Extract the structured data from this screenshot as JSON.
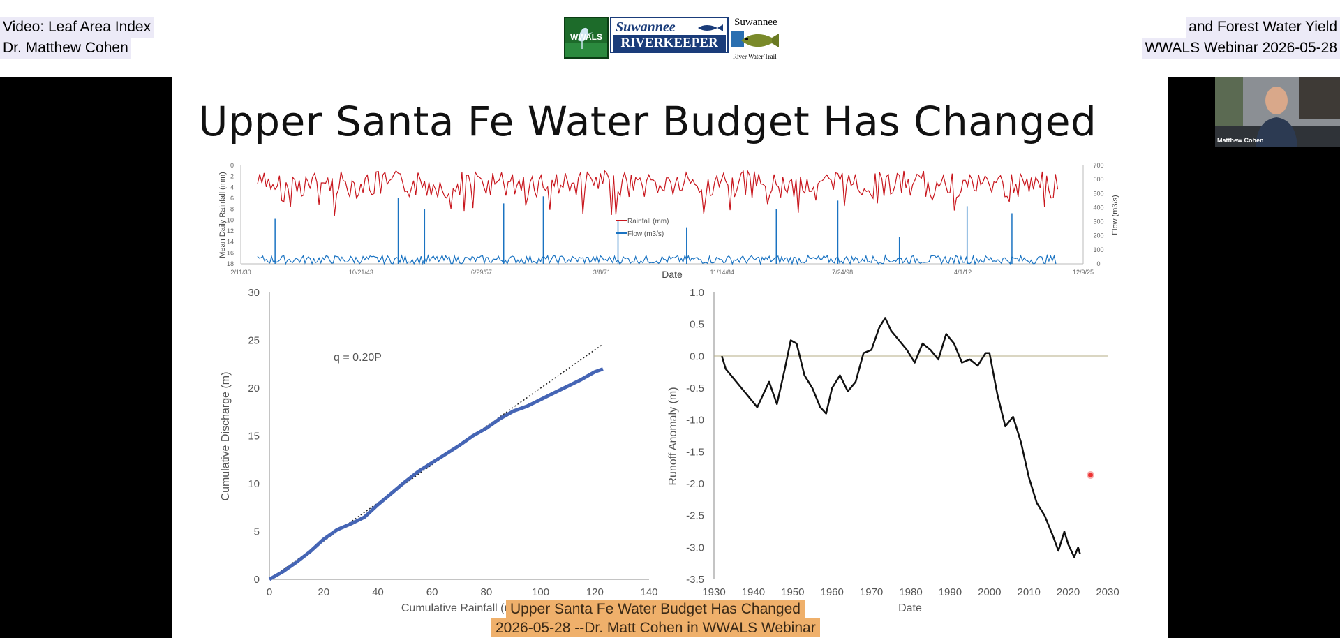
{
  "header": {
    "left_line1": "Video: Leaf Area Index",
    "left_line2": "Dr. Matthew Cohen",
    "right_line1": "and Forest Water Yield",
    "right_line2": "WWALS Webinar 2026-05-28"
  },
  "logos": {
    "wwals": "WWALS",
    "riverkeeper_top": "Suwannee",
    "riverkeeper_bottom": "RIVERKEEPER",
    "trail_top": "Suwannee",
    "trail_bottom": "River Water Trail"
  },
  "slide": {
    "title": "Upper Santa Fe Water Budget Has Changed"
  },
  "webcam": {
    "name": "Matthew Cohen"
  },
  "captions": {
    "line1": "Upper Santa Fe Water Budget Has Changed",
    "line2": "2026-05-28 --Dr. Matt Cohen in WWALS Webinar"
  },
  "colors": {
    "rainfall": "#c8161d",
    "flow": "#1a73c2",
    "cumulative": "#4565b5",
    "anomaly": "#111111",
    "caption_bg": "#efb06b"
  },
  "chart_data": [
    {
      "type": "line",
      "xlabel": "Date",
      "ylabel": "Mean Daily Rainfall (mm)",
      "y2label": "Flow (m3/s)",
      "x_ticks": [
        "2/11/30",
        "10/21/43",
        "6/29/57",
        "3/8/71",
        "11/14/84",
        "7/24/98",
        "4/1/12",
        "12/9/25"
      ],
      "y_ticks": [
        0,
        2,
        4,
        6,
        8,
        10,
        12,
        14,
        16,
        18
      ],
      "y_inverted": true,
      "y2_ticks": [
        0,
        100,
        200,
        300,
        400,
        500,
        600,
        700
      ],
      "legend": "center",
      "series": [
        {
          "name": "Rainfall (mm)",
          "axis": "left",
          "x_range": [
            1932,
            2023
          ],
          "typical_range": [
            1,
            6
          ],
          "max": 9.5
        },
        {
          "name": "Flow (m3/s)",
          "axis": "right",
          "x_range": [
            1932,
            2023
          ],
          "typical_range": [
            0,
            60
          ],
          "peaks": [
            {
              "x": 1934.0,
              "y": 320
            },
            {
              "x": 1948.0,
              "y": 470
            },
            {
              "x": 1951.0,
              "y": 390
            },
            {
              "x": 1960.0,
              "y": 430
            },
            {
              "x": 1964.5,
              "y": 480
            },
            {
              "x": 1973.0,
              "y": 310
            },
            {
              "x": 1980.8,
              "y": 260
            },
            {
              "x": 1991.0,
              "y": 390
            },
            {
              "x": 1998.0,
              "y": 450
            },
            {
              "x": 2005.0,
              "y": 190
            },
            {
              "x": 2012.7,
              "y": 410
            },
            {
              "x": 2017.8,
              "y": 360
            }
          ]
        }
      ]
    },
    {
      "type": "scatter",
      "xlabel": "Cumulative Rainfall (m)",
      "ylabel": "Cumulative Discharge (m)",
      "xlim": [
        0,
        140
      ],
      "ylim": [
        0,
        30
      ],
      "x_ticks": [
        0,
        20,
        40,
        60,
        80,
        100,
        120,
        140
      ],
      "y_ticks": [
        0,
        5,
        10,
        15,
        20,
        25,
        30
      ],
      "annotation": "q = 0.20P",
      "fit_line": {
        "slope": 0.2,
        "x": [
          0,
          123
        ]
      },
      "x": [
        0,
        5,
        10,
        15,
        20,
        25,
        30,
        35,
        40,
        45,
        50,
        55,
        60,
        65,
        70,
        75,
        80,
        85,
        90,
        95,
        100,
        105,
        110,
        115,
        120,
        123
      ],
      "y": [
        0,
        0.8,
        1.8,
        2.9,
        4.2,
        5.2,
        5.8,
        6.5,
        7.8,
        9.0,
        10.2,
        11.3,
        12.2,
        13.1,
        14.0,
        15.0,
        15.8,
        16.8,
        17.6,
        18.1,
        18.8,
        19.5,
        20.2,
        20.9,
        21.7,
        22.0
      ]
    },
    {
      "type": "line",
      "xlabel": "Date",
      "ylabel": "Runoff Anomaly (m)",
      "xlim": [
        1930,
        2030
      ],
      "ylim": [
        -3.5,
        1.0
      ],
      "x_ticks": [
        1930,
        1940,
        1950,
        1960,
        1970,
        1980,
        1990,
        2000,
        2010,
        2020,
        2030
      ],
      "y_ticks": [
        "1.0",
        "0.5",
        "0.0",
        "-0.5",
        "-1.0",
        "-1.5",
        "-2.0",
        "-2.5",
        "-3.0",
        "-3.5"
      ],
      "x": [
        1932,
        1933,
        1935,
        1937,
        1939,
        1941,
        1942.5,
        1944,
        1946,
        1948,
        1949.5,
        1951,
        1953,
        1955,
        1957,
        1958.5,
        1960,
        1962,
        1964,
        1966,
        1968,
        1970,
        1972,
        1973.5,
        1975,
        1977,
        1979,
        1981,
        1983,
        1985,
        1987,
        1989,
        1991,
        1993,
        1995,
        1997,
        1999,
        2000,
        2002,
        2004,
        2006,
        2008,
        2010,
        2012,
        2014,
        2016,
        2017.5,
        2019,
        2020,
        2021.5,
        2022.5,
        2023
      ],
      "y": [
        0.0,
        -0.2,
        -0.35,
        -0.5,
        -0.65,
        -0.8,
        -0.6,
        -0.4,
        -0.75,
        -0.2,
        0.25,
        0.2,
        -0.3,
        -0.5,
        -0.8,
        -0.9,
        -0.5,
        -0.3,
        -0.55,
        -0.4,
        0.05,
        0.1,
        0.45,
        0.6,
        0.4,
        0.25,
        0.1,
        -0.1,
        0.2,
        0.1,
        -0.05,
        0.35,
        0.2,
        -0.1,
        -0.05,
        -0.15,
        0.05,
        0.05,
        -0.6,
        -1.1,
        -0.95,
        -1.35,
        -1.9,
        -2.3,
        -2.5,
        -2.8,
        -3.05,
        -2.75,
        -2.95,
        -3.15,
        -3.0,
        -3.1
      ]
    }
  ]
}
